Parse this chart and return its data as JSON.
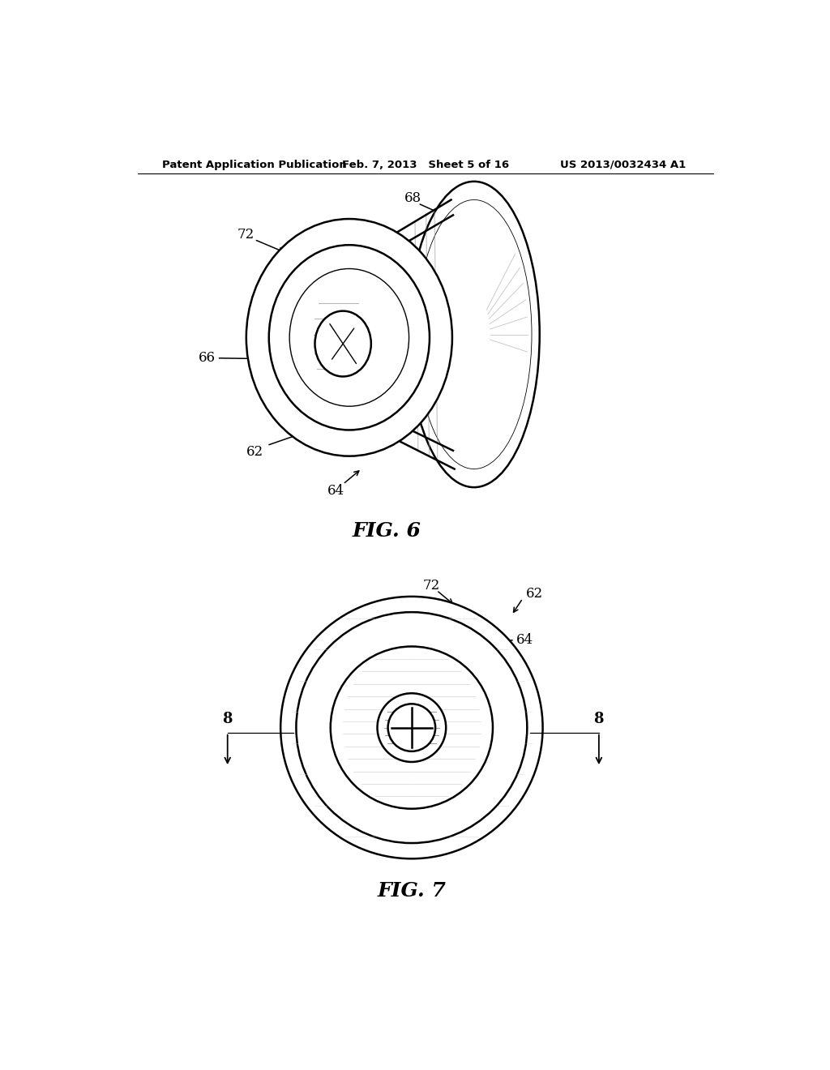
{
  "bg_color": "#ffffff",
  "line_color": "#000000",
  "header_left": "Patent Application Publication",
  "header_mid": "Feb. 7, 2013   Sheet 5 of 16",
  "header_right": "US 2013/0032434 A1",
  "fig6_label": "FIG. 6",
  "fig7_label": "FIG. 7"
}
